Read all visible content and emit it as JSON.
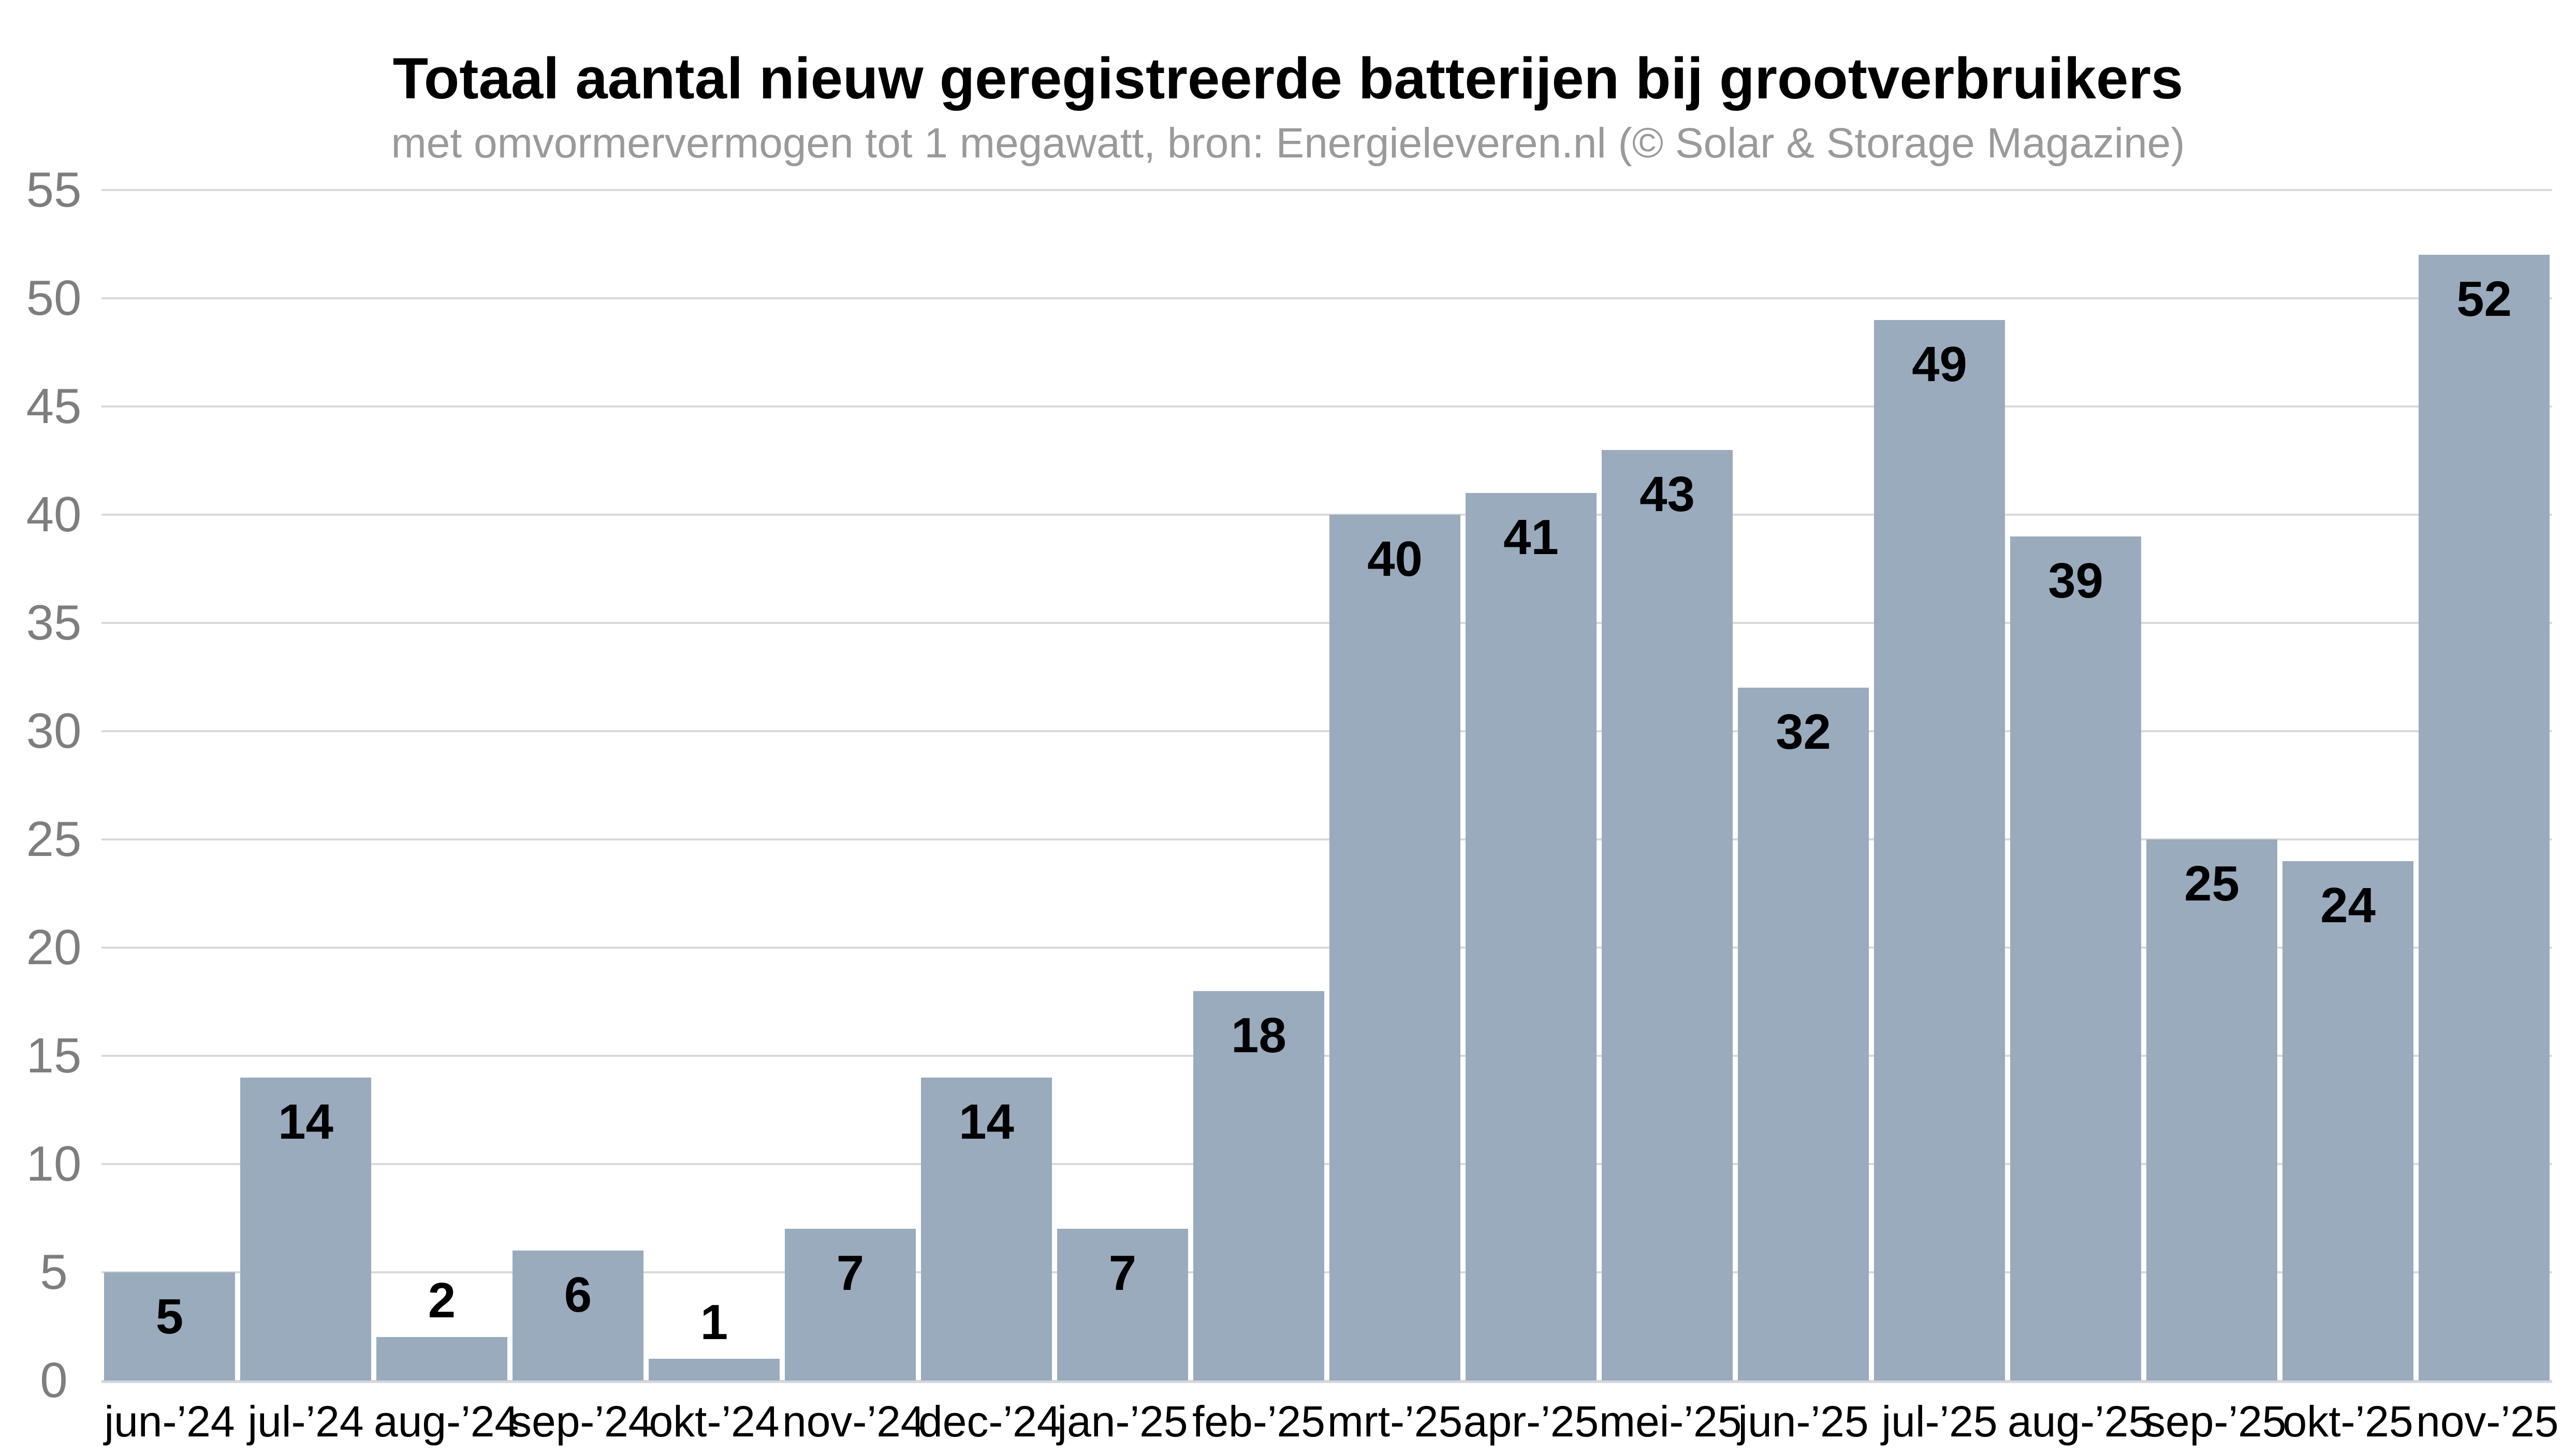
{
  "chart_data": {
    "type": "bar",
    "title": "Totaal aantal nieuw geregistreerde batterijen bij grootverbruikers",
    "subtitle": "met omvormervermogen tot 1 megawatt, bron: Energieleveren.nl (© Solar & Storage Magazine)",
    "categories": [
      "jun-’24",
      "jul-’24",
      "aug-’24",
      "sep-’24",
      "okt-’24",
      "nov-’24",
      "dec-’24",
      "jan-’25",
      "feb-’25",
      "mrt-’25",
      "apr-’25",
      "mei-’25",
      "jun-’25",
      "jul-’25",
      "aug-’25",
      "sep-’25",
      "okt-’25",
      "nov-’25"
    ],
    "values": [
      5,
      14,
      2,
      6,
      1,
      7,
      14,
      7,
      18,
      40,
      41,
      43,
      32,
      49,
      39,
      25,
      24,
      52
    ],
    "y_ticks": [
      0,
      5,
      10,
      15,
      20,
      25,
      30,
      35,
      40,
      45,
      50,
      55
    ],
    "ylim": [
      0,
      55
    ],
    "xlabel": "",
    "ylabel": "",
    "grid": "horizontal",
    "legend": "none",
    "data_labels": "on",
    "data_label_outside_below": 4,
    "colors": {
      "bar_fill": "#99abbd",
      "gridline": "#d9d9d9",
      "axis_line": "#d3d8dc",
      "title": "#000000",
      "subtitle": "#9a9a9a",
      "y_tick_text": "#7e7e7e",
      "x_label_text": "#000000",
      "data_label_text": "#000000",
      "background": "#ffffff"
    }
  }
}
